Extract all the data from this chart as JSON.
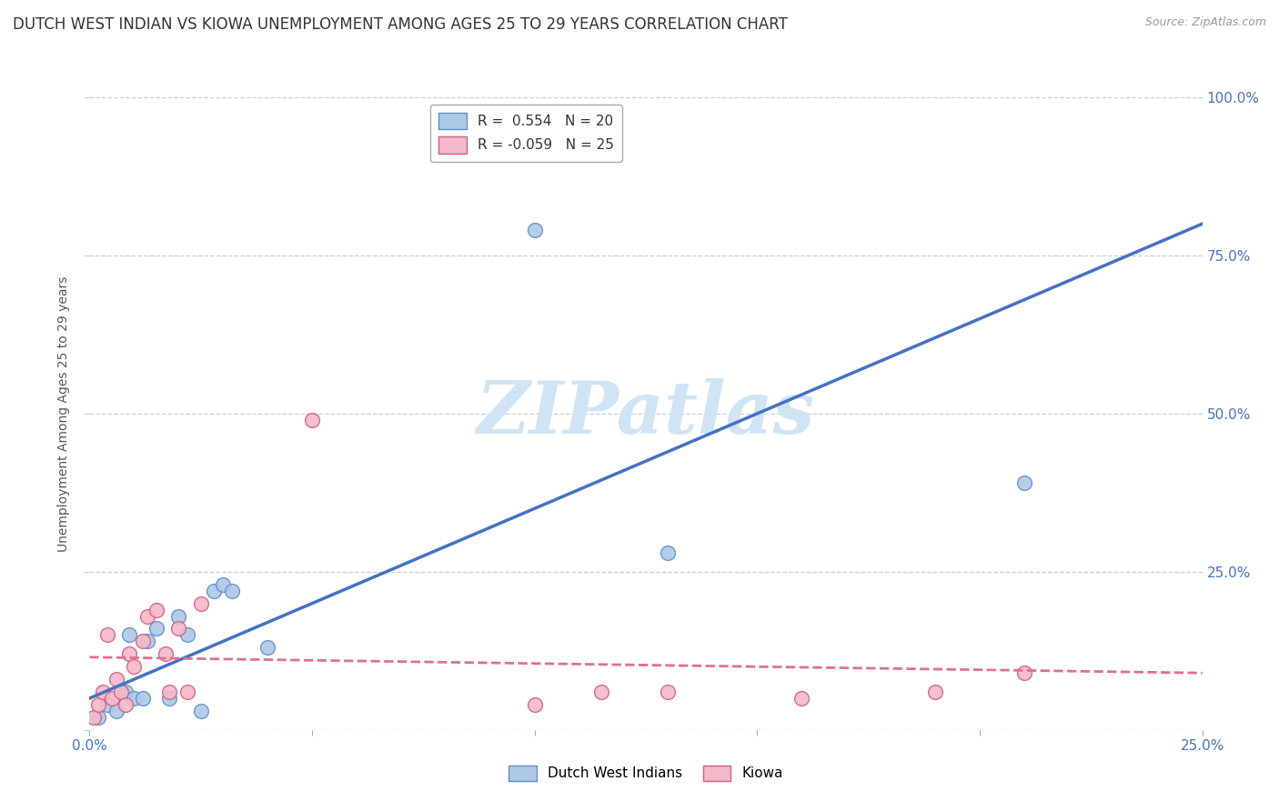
{
  "title": "DUTCH WEST INDIAN VS KIOWA UNEMPLOYMENT AMONG AGES 25 TO 29 YEARS CORRELATION CHART",
  "source": "Source: ZipAtlas.com",
  "ylabel": "Unemployment Among Ages 25 to 29 years",
  "xlim": [
    0,
    0.25
  ],
  "ylim": [
    0,
    1.0
  ],
  "xticks": [
    0.0,
    0.05,
    0.1,
    0.15,
    0.2,
    0.25
  ],
  "yticks": [
    0.0,
    0.25,
    0.5,
    0.75,
    1.0
  ],
  "blue_R": 0.554,
  "blue_N": 20,
  "pink_R": -0.059,
  "pink_N": 25,
  "blue_color": "#aec8e8",
  "pink_color": "#f4b8c8",
  "blue_edge_color": "#6090c8",
  "pink_edge_color": "#d06080",
  "blue_line_color": "#4472c4",
  "pink_line_color": "#e07090",
  "watermark_color": "#d0e4f4",
  "blue_label": "Dutch West Indians",
  "pink_label": "Kiowa",
  "blue_scatter_x": [
    0.002,
    0.004,
    0.006,
    0.008,
    0.009,
    0.01,
    0.012,
    0.013,
    0.015,
    0.018,
    0.02,
    0.022,
    0.025,
    0.028,
    0.03,
    0.032,
    0.04,
    0.1,
    0.13,
    0.21
  ],
  "blue_scatter_y": [
    0.02,
    0.04,
    0.03,
    0.06,
    0.15,
    0.05,
    0.05,
    0.14,
    0.16,
    0.05,
    0.18,
    0.15,
    0.03,
    0.22,
    0.23,
    0.22,
    0.13,
    0.79,
    0.28,
    0.39
  ],
  "pink_scatter_x": [
    0.001,
    0.002,
    0.003,
    0.004,
    0.005,
    0.006,
    0.007,
    0.008,
    0.009,
    0.01,
    0.012,
    0.013,
    0.015,
    0.017,
    0.018,
    0.02,
    0.022,
    0.025,
    0.05,
    0.1,
    0.115,
    0.13,
    0.16,
    0.19,
    0.21
  ],
  "pink_scatter_y": [
    0.02,
    0.04,
    0.06,
    0.15,
    0.05,
    0.08,
    0.06,
    0.04,
    0.12,
    0.1,
    0.14,
    0.18,
    0.19,
    0.12,
    0.06,
    0.16,
    0.06,
    0.2,
    0.49,
    0.04,
    0.06,
    0.06,
    0.05,
    0.06,
    0.09
  ],
  "blue_regline_x": [
    0.0,
    0.25
  ],
  "blue_regline_y": [
    0.05,
    0.8
  ],
  "pink_regline_x": [
    0.0,
    0.25
  ],
  "pink_regline_y": [
    0.115,
    0.09
  ],
  "title_fontsize": 12,
  "axis_label_fontsize": 10,
  "tick_fontsize": 11,
  "legend_fontsize": 11,
  "marker_size": 130,
  "background_color": "#ffffff",
  "grid_color": "#cccccc"
}
